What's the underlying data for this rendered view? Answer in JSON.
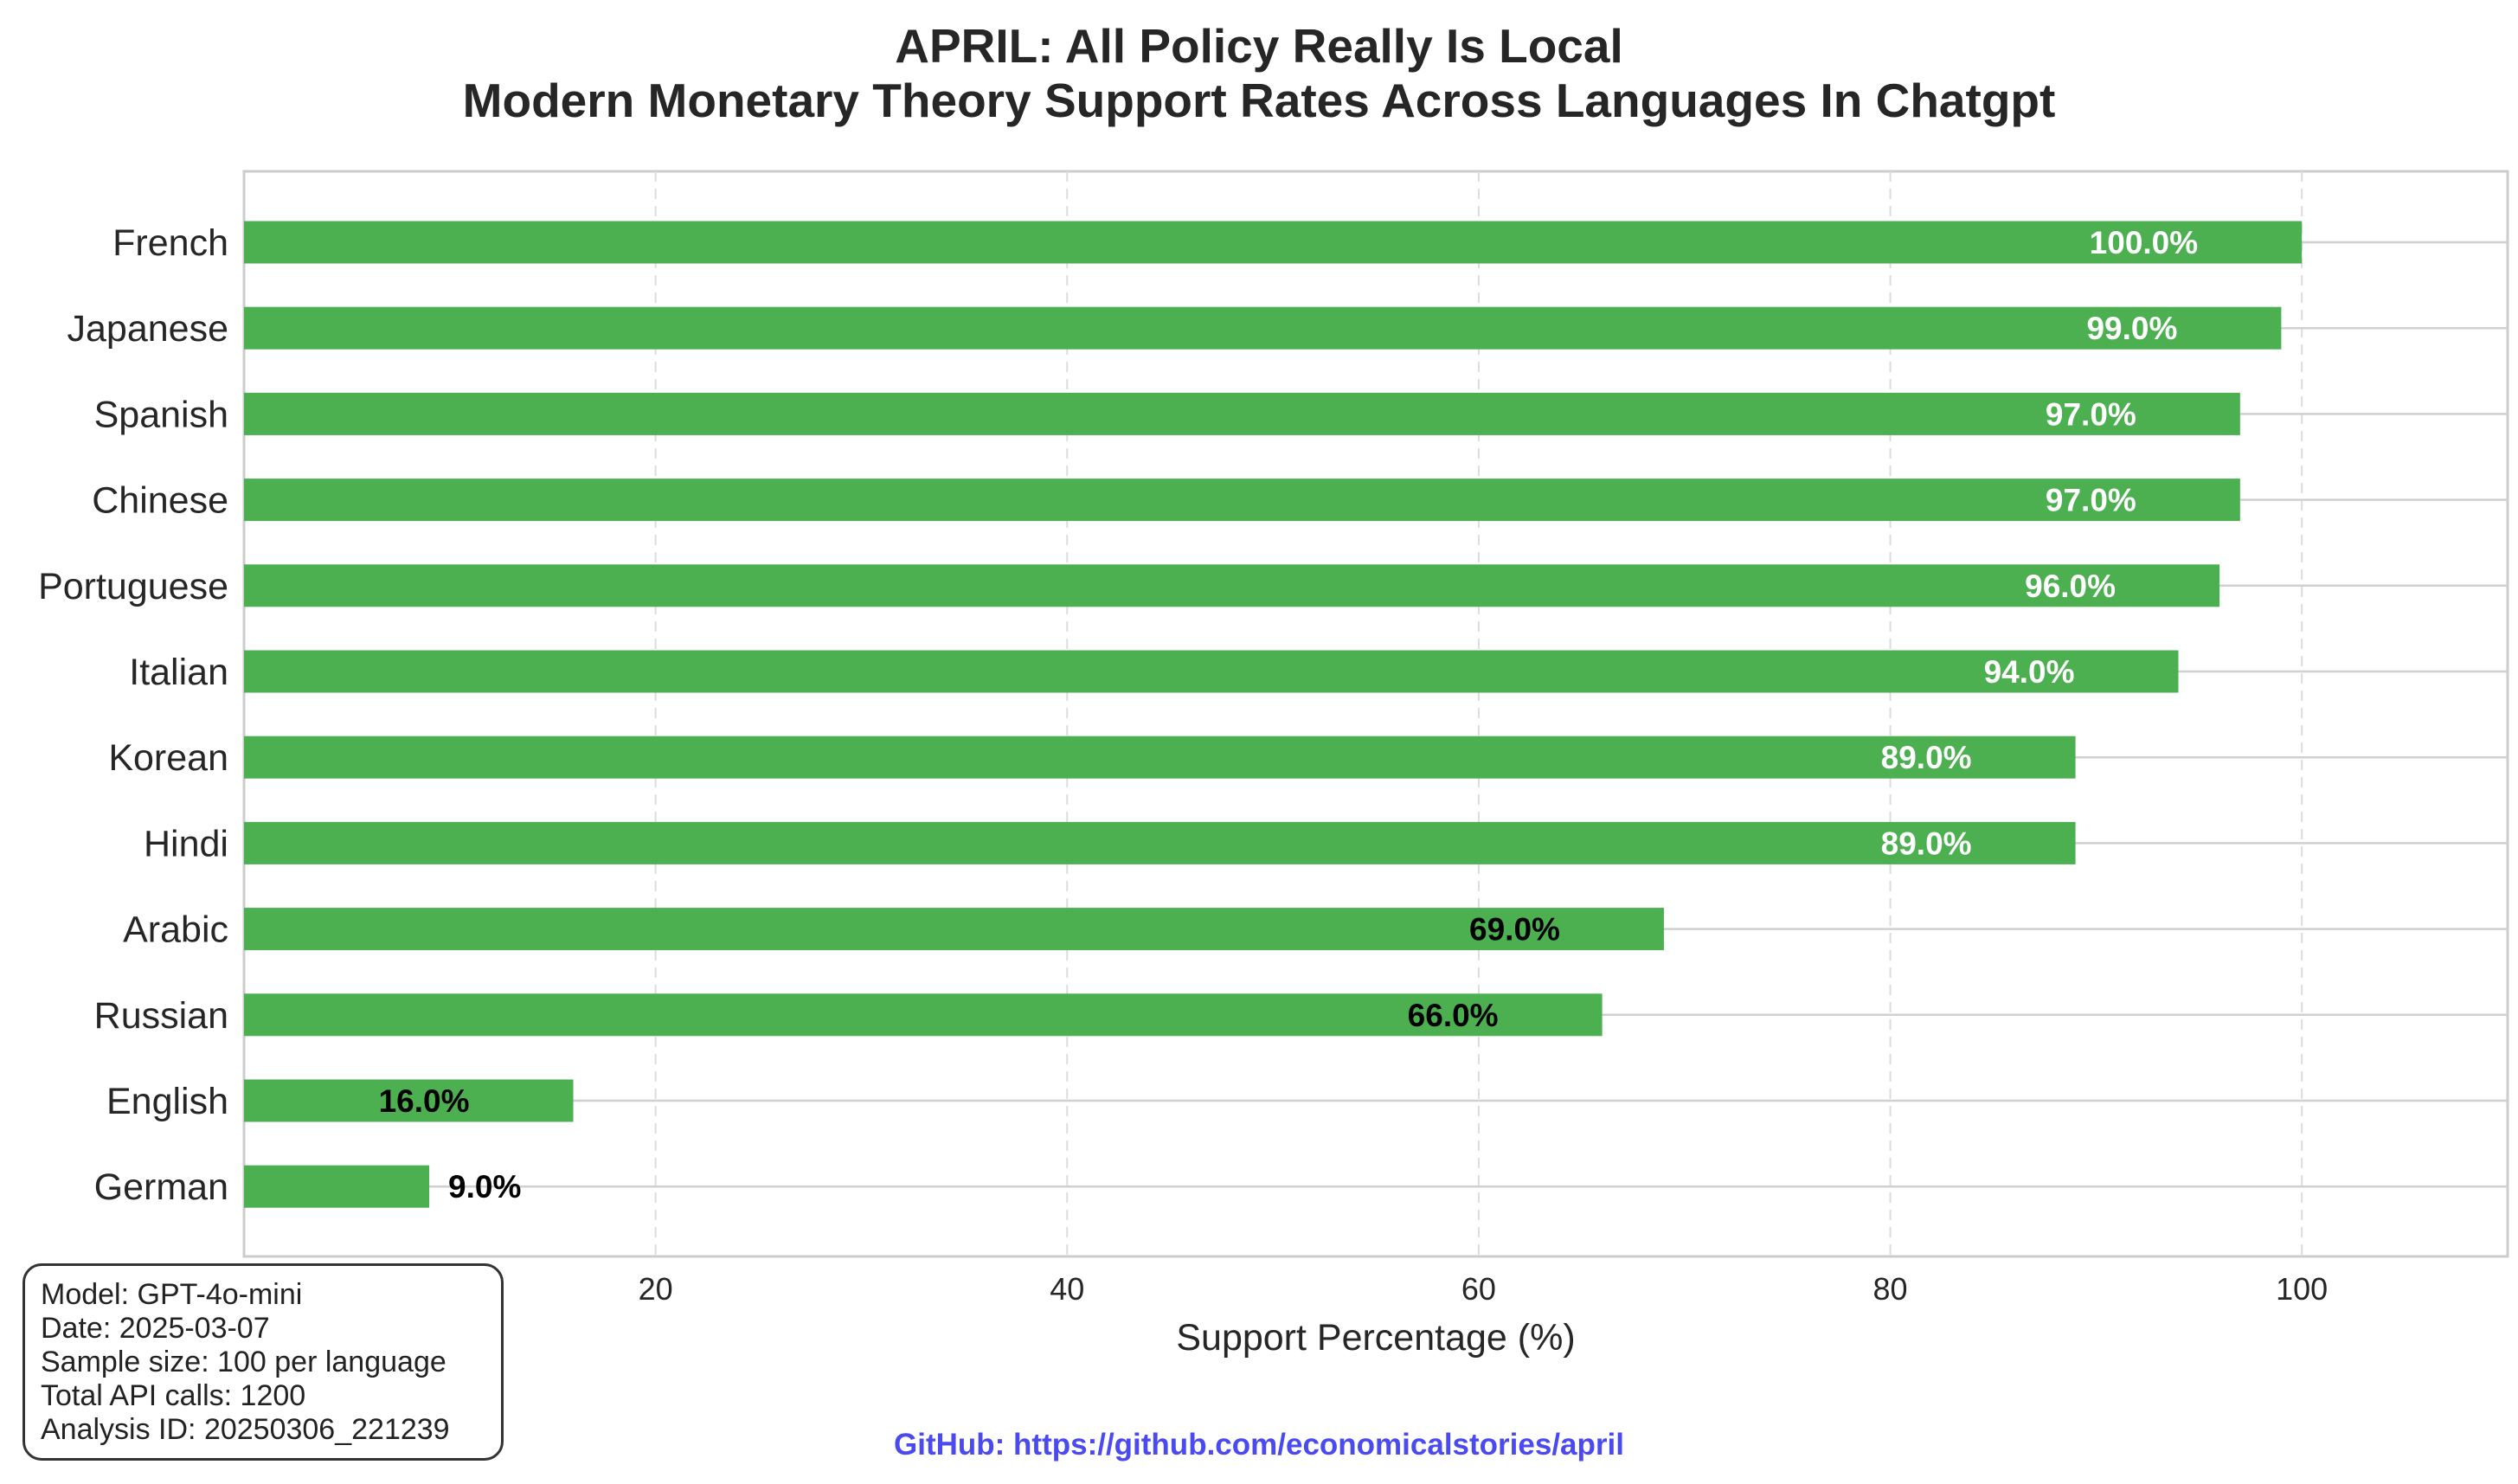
{
  "chart_data": {
    "type": "bar",
    "orientation": "horizontal",
    "title": [
      "APRIL: All Policy Really Is Local",
      "Modern Monetary Theory Support Rates Across Languages In Chatgpt"
    ],
    "xlabel": "Support Percentage (%)",
    "ylabel": "",
    "xlim": [
      0,
      110
    ],
    "xticks": [
      0,
      20,
      40,
      60,
      80,
      100
    ],
    "grid": true,
    "bar_color": "#4caf50",
    "categories": [
      "French",
      "Japanese",
      "Spanish",
      "Chinese",
      "Portuguese",
      "Italian",
      "Korean",
      "Hindi",
      "Arabic",
      "Russian",
      "English",
      "German"
    ],
    "values": [
      100.0,
      99.0,
      97.0,
      97.0,
      96.0,
      94.0,
      89.0,
      89.0,
      69.0,
      66.0,
      16.0,
      9.0
    ],
    "data_labels": [
      "100.0%",
      "99.0%",
      "97.0%",
      "97.0%",
      "96.0%",
      "94.0%",
      "89.0%",
      "89.0%",
      "69.0%",
      "66.0%",
      "16.0%",
      "9.0%"
    ]
  },
  "info_box": {
    "lines": [
      "Model: GPT-4o-mini",
      "Date: 2025-03-07",
      "Sample size: 100 per language",
      "Total API calls: 1200",
      "Analysis ID: 20250306_221239"
    ]
  },
  "footer": {
    "github": "GitHub: https://github.com/economicalstories/april"
  }
}
